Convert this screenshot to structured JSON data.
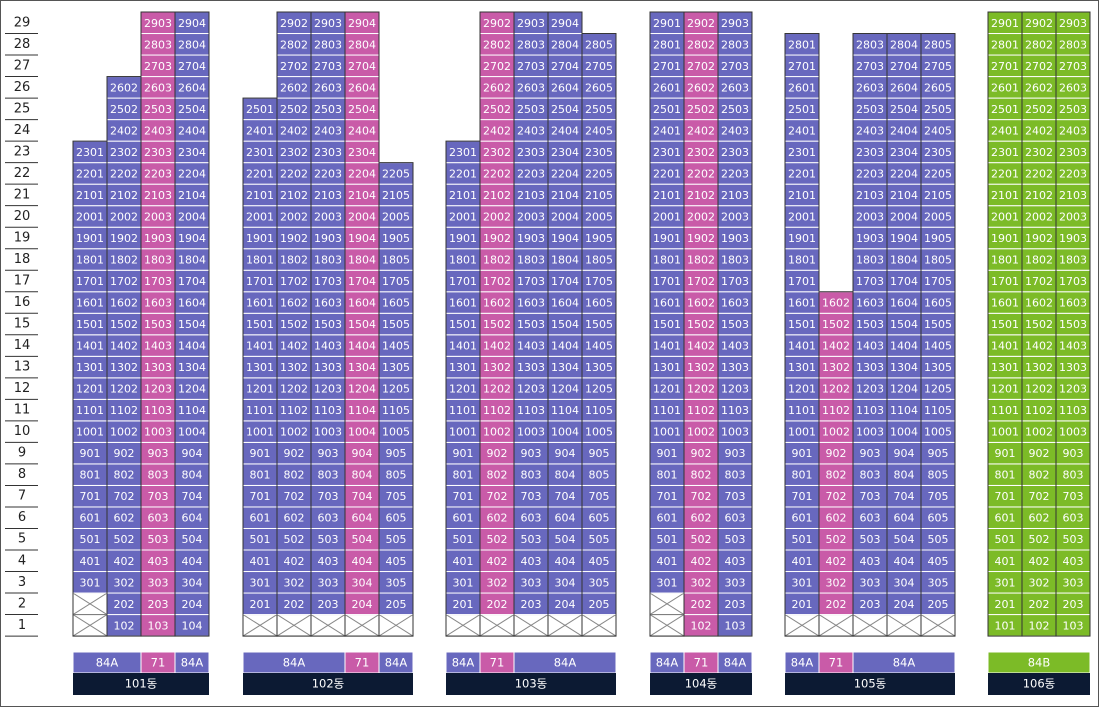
{
  "floors": [
    "29",
    "28",
    "27",
    "26",
    "25",
    "24",
    "23",
    "22",
    "21",
    "20",
    "19",
    "18",
    "17",
    "16",
    "15",
    "14",
    "13",
    "12",
    "11",
    "10",
    "9",
    "8",
    "7",
    "6",
    "5",
    "4",
    "3",
    "2",
    "1"
  ],
  "colors": {
    "84A": "#6868be",
    "71": "#c95ba8",
    "84B": "#7cbb27"
  },
  "buildings": [
    {
      "name": "101동",
      "columns": [
        {
          "type": "84A",
          "units": [
            null,
            null,
            "301",
            "401",
            "501",
            "601",
            "701",
            "801",
            "901",
            "1001",
            "1101",
            "1201",
            "1301",
            "1401",
            "1501",
            "1601",
            "1701",
            "1801",
            "1901",
            "2001",
            "2101",
            "2201",
            "2301"
          ]
        },
        {
          "type": "84A",
          "units": [
            "102",
            "202",
            "302",
            "402",
            "502",
            "602",
            "702",
            "802",
            "902",
            "1002",
            "1102",
            "1202",
            "1302",
            "1402",
            "1502",
            "1602",
            "1702",
            "1802",
            "1902",
            "2002",
            "2102",
            "2202",
            "2302",
            "2402",
            "2502",
            "2602"
          ]
        },
        {
          "type": "71",
          "units": [
            "103",
            "203",
            "303",
            "403",
            "503",
            "603",
            "703",
            "803",
            "903",
            "1003",
            "1103",
            "1203",
            "1303",
            "1403",
            "1503",
            "1603",
            "1703",
            "1803",
            "1903",
            "2003",
            "2103",
            "2203",
            "2303",
            "2403",
            "2503",
            "2603",
            "2703",
            "2803",
            "2903"
          ]
        },
        {
          "type": "84A",
          "units": [
            "104",
            "204",
            "304",
            "404",
            "504",
            "604",
            "704",
            "804",
            "904",
            "1004",
            "1104",
            "1204",
            "1304",
            "1404",
            "1504",
            "1604",
            "1704",
            "1804",
            "1904",
            "2004",
            "2104",
            "2204",
            "2304",
            "2404",
            "2504",
            "2604",
            "2704",
            "2804",
            "2904"
          ]
        }
      ]
    },
    {
      "name": "102동",
      "columns": [
        {
          "type": "84A",
          "units": [
            null,
            "201",
            "301",
            "401",
            "501",
            "601",
            "701",
            "801",
            "901",
            "1001",
            "1101",
            "1201",
            "1301",
            "1401",
            "1501",
            "1601",
            "1701",
            "1801",
            "1901",
            "2001",
            "2101",
            "2201",
            "2301",
            "2401",
            "2501"
          ]
        },
        {
          "type": "84A",
          "units": [
            null,
            "202",
            "302",
            "402",
            "502",
            "602",
            "702",
            "802",
            "902",
            "1002",
            "1102",
            "1202",
            "1302",
            "1402",
            "1502",
            "1602",
            "1702",
            "1802",
            "1902",
            "2002",
            "2102",
            "2202",
            "2302",
            "2402",
            "2502",
            "2602",
            "2702",
            "2802",
            "2902"
          ]
        },
        {
          "type": "84A",
          "units": [
            null,
            "203",
            "303",
            "403",
            "503",
            "603",
            "703",
            "803",
            "903",
            "1003",
            "1103",
            "1203",
            "1303",
            "1403",
            "1503",
            "1603",
            "1703",
            "1803",
            "1903",
            "2003",
            "2103",
            "2203",
            "2303",
            "2403",
            "2503",
            "2603",
            "2703",
            "2803",
            "2903"
          ]
        },
        {
          "type": "71",
          "units": [
            null,
            "204",
            "304",
            "404",
            "504",
            "604",
            "704",
            "804",
            "904",
            "1004",
            "1104",
            "1204",
            "1304",
            "1404",
            "1504",
            "1604",
            "1704",
            "1804",
            "1904",
            "2004",
            "2104",
            "2204",
            "2304",
            "2404",
            "2504",
            "2604",
            "2704",
            "2804",
            "2904"
          ]
        },
        {
          "type": "84A",
          "units": [
            null,
            "205",
            "305",
            "405",
            "505",
            "605",
            "705",
            "805",
            "905",
            "1005",
            "1105",
            "1205",
            "1305",
            "1405",
            "1505",
            "1605",
            "1705",
            "1805",
            "1905",
            "2005",
            "2105",
            "2205"
          ]
        }
      ]
    },
    {
      "name": "103동",
      "columns": [
        {
          "type": "84A",
          "units": [
            null,
            "201",
            "301",
            "401",
            "501",
            "601",
            "701",
            "801",
            "901",
            "1001",
            "1101",
            "1201",
            "1301",
            "1401",
            "1501",
            "1601",
            "1701",
            "1801",
            "1901",
            "2001",
            "2101",
            "2201",
            "2301"
          ]
        },
        {
          "type": "71",
          "units": [
            null,
            "202",
            "302",
            "402",
            "502",
            "602",
            "702",
            "802",
            "902",
            "1002",
            "1102",
            "1202",
            "1302",
            "1402",
            "1502",
            "1602",
            "1702",
            "1802",
            "1902",
            "2002",
            "2102",
            "2202",
            "2302",
            "2402",
            "2502",
            "2602",
            "2702",
            "2802",
            "2902"
          ]
        },
        {
          "type": "84A",
          "units": [
            null,
            "203",
            "303",
            "403",
            "503",
            "603",
            "703",
            "803",
            "903",
            "1003",
            "1103",
            "1203",
            "1303",
            "1403",
            "1503",
            "1603",
            "1703",
            "1803",
            "1903",
            "2003",
            "2103",
            "2203",
            "2303",
            "2403",
            "2503",
            "2603",
            "2703",
            "2803",
            "2903"
          ]
        },
        {
          "type": "84A",
          "units": [
            null,
            "204",
            "304",
            "404",
            "504",
            "604",
            "704",
            "804",
            "904",
            "1004",
            "1104",
            "1204",
            "1304",
            "1404",
            "1504",
            "1604",
            "1704",
            "1804",
            "1904",
            "2004",
            "2104",
            "2204",
            "2304",
            "2404",
            "2504",
            "2604",
            "2704",
            "2804",
            "2904"
          ]
        },
        {
          "type": "84A",
          "units": [
            null,
            "205",
            "305",
            "405",
            "505",
            "605",
            "705",
            "805",
            "905",
            "1005",
            "1105",
            "1205",
            "1305",
            "1405",
            "1505",
            "1605",
            "1705",
            "1805",
            "1905",
            "2005",
            "2105",
            "2205",
            "2305",
            "2405",
            "2505",
            "2605",
            "2705",
            "2805"
          ]
        }
      ]
    },
    {
      "name": "104동",
      "columns": [
        {
          "type": "84A",
          "units": [
            null,
            null,
            "301",
            "401",
            "501",
            "601",
            "701",
            "801",
            "901",
            "1001",
            "1101",
            "1201",
            "1301",
            "1401",
            "1501",
            "1601",
            "1701",
            "1801",
            "1901",
            "2001",
            "2101",
            "2201",
            "2301",
            "2401",
            "2501",
            "2601",
            "2701",
            "2801",
            "2901"
          ]
        },
        {
          "type": "71",
          "units": [
            "102",
            "202",
            "302",
            "402",
            "502",
            "602",
            "702",
            "802",
            "902",
            "1002",
            "1102",
            "1202",
            "1302",
            "1402",
            "1502",
            "1602",
            "1702",
            "1802",
            "1902",
            "2002",
            "2102",
            "2202",
            "2302",
            "2402",
            "2502",
            "2602",
            "2702",
            "2802",
            "2902"
          ]
        },
        {
          "type": "84A",
          "units": [
            "103",
            "203",
            "303",
            "403",
            "503",
            "603",
            "703",
            "803",
            "903",
            "1003",
            "1103",
            "1203",
            "1303",
            "1403",
            "1503",
            "1603",
            "1703",
            "1803",
            "1903",
            "2003",
            "2103",
            "2203",
            "2303",
            "2403",
            "2503",
            "2603",
            "2703",
            "2803",
            "2903"
          ]
        }
      ]
    },
    {
      "name": "105동",
      "columns": [
        {
          "type": "84A",
          "units": [
            null,
            "201",
            "301",
            "401",
            "501",
            "601",
            "701",
            "801",
            "901",
            "1001",
            "1101",
            "1201",
            "1301",
            "1401",
            "1501",
            "1601",
            "1701",
            "1801",
            "1901",
            "2001",
            "2101",
            "2201",
            "2301",
            "2401",
            "2501",
            "2601",
            "2701",
            "2801"
          ]
        },
        {
          "type": "71",
          "units": [
            null,
            "202",
            "302",
            "402",
            "502",
            "602",
            "702",
            "802",
            "902",
            "1002",
            "1102",
            "1202",
            "1302",
            "1402",
            "1502",
            "1602"
          ]
        },
        {
          "type": "84A",
          "units": [
            null,
            "203",
            "303",
            "403",
            "503",
            "603",
            "703",
            "803",
            "903",
            "1003",
            "1103",
            "1203",
            "1303",
            "1403",
            "1503",
            "1603",
            "1703",
            "1803",
            "1903",
            "2003",
            "2103",
            "2203",
            "2303",
            "2403",
            "2503",
            "2603",
            "2703",
            "2803"
          ]
        },
        {
          "type": "84A",
          "units": [
            null,
            "204",
            "304",
            "404",
            "504",
            "604",
            "704",
            "804",
            "904",
            "1004",
            "1104",
            "1204",
            "1304",
            "1404",
            "1504",
            "1604",
            "1704",
            "1804",
            "1904",
            "2004",
            "2104",
            "2204",
            "2304",
            "2404",
            "2504",
            "2604",
            "2704",
            "2804"
          ]
        },
        {
          "type": "84A",
          "units": [
            null,
            "205",
            "305",
            "405",
            "505",
            "605",
            "705",
            "805",
            "905",
            "1005",
            "1105",
            "1205",
            "1305",
            "1405",
            "1505",
            "1605",
            "1705",
            "1805",
            "1905",
            "2005",
            "2105",
            "2205",
            "2305",
            "2405",
            "2505",
            "2605",
            "2705",
            "2805"
          ]
        }
      ]
    },
    {
      "name": "106동",
      "columns": [
        {
          "type": "84B",
          "units": [
            "101",
            "201",
            "301",
            "401",
            "501",
            "601",
            "701",
            "801",
            "901",
            "1001",
            "1101",
            "1201",
            "1301",
            "1401",
            "1501",
            "1601",
            "1701",
            "1801",
            "1901",
            "2001",
            "2101",
            "2201",
            "2301",
            "2401",
            "2501",
            "2601",
            "2701",
            "2801",
            "2901"
          ]
        },
        {
          "type": "84B",
          "units": [
            "102",
            "202",
            "302",
            "402",
            "502",
            "602",
            "702",
            "802",
            "902",
            "1002",
            "1102",
            "1202",
            "1302",
            "1402",
            "1502",
            "1602",
            "1702",
            "1802",
            "1902",
            "2002",
            "2102",
            "2202",
            "2302",
            "2402",
            "2502",
            "2602",
            "2702",
            "2802",
            "2902"
          ]
        },
        {
          "type": "84B",
          "units": [
            "103",
            "203",
            "303",
            "403",
            "503",
            "603",
            "703",
            "803",
            "903",
            "1003",
            "1103",
            "1203",
            "1303",
            "1403",
            "1503",
            "1603",
            "1703",
            "1803",
            "1903",
            "2003",
            "2103",
            "2203",
            "2303",
            "2403",
            "2503",
            "2603",
            "2703",
            "2803",
            "2903"
          ]
        }
      ]
    }
  ]
}
